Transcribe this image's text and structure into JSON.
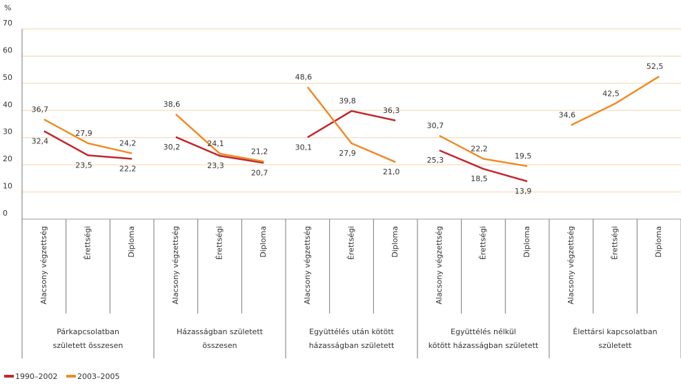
{
  "chart_data": {
    "type": "line",
    "y_axis_label": "%",
    "groups": [
      {
        "name": [
          "Párkapcsolatban",
          "született összesen"
        ],
        "categories": [
          "Alacsony végzettség",
          "Érettségi",
          "Diploma"
        ]
      },
      {
        "name": [
          "Házasságban született",
          "összesen"
        ],
        "categories": [
          "Alacsony végzettség",
          "Érettségi",
          "Diploma"
        ]
      },
      {
        "name": [
          "Együttélés után kötött",
          "házasságban született"
        ],
        "categories": [
          "Alacsony végzettség",
          "Érettségi",
          "Diploma"
        ]
      },
      {
        "name": [
          "Együttélés nélkül",
          "kötött házasságban született"
        ],
        "categories": [
          "Alacsony végzettség",
          "Érettségi",
          "Diploma"
        ]
      },
      {
        "name": [
          "Élettársi kapcsolatban",
          "született"
        ],
        "categories": [
          "Alacsony végzettség",
          "Érettségi",
          "Diploma"
        ]
      }
    ],
    "series": [
      {
        "name": "1990–2002",
        "color": "#c1272d",
        "values": [
          [
            32.4,
            23.5,
            22.2
          ],
          [
            30.2,
            23.3,
            20.7
          ],
          [
            30.1,
            39.8,
            36.3
          ],
          [
            25.3,
            18.5,
            13.9
          ],
          [
            null,
            null,
            null
          ]
        ],
        "value_labels": [
          [
            "32,4",
            "23,5",
            "22,2"
          ],
          [
            "30,2",
            "23,3",
            "20,7"
          ],
          [
            "30,1",
            "39,8",
            "36,3"
          ],
          [
            "25,3",
            "18,5",
            "13,9"
          ],
          [
            null,
            null,
            null
          ]
        ]
      },
      {
        "name": "2003–2005",
        "color": "#f08a24",
        "values": [
          [
            36.7,
            27.9,
            24.2
          ],
          [
            38.6,
            24.1,
            21.2
          ],
          [
            48.6,
            27.9,
            21.0
          ],
          [
            30.7,
            22.2,
            19.5
          ],
          [
            34.6,
            42.5,
            52.5
          ]
        ],
        "value_labels": [
          [
            "36,7",
            "27,9",
            "24,2"
          ],
          [
            "38,6",
            "24,1",
            "21,2"
          ],
          [
            "48,6",
            "27,9",
            "21,0"
          ],
          [
            "30,7",
            "22,2",
            "19,5"
          ],
          [
            "34,6",
            "42,5",
            "52,5"
          ]
        ]
      }
    ],
    "ylim": [
      0,
      70
    ],
    "yticks": [
      0,
      10,
      20,
      30,
      40,
      50,
      60,
      70
    ],
    "grid": true
  }
}
